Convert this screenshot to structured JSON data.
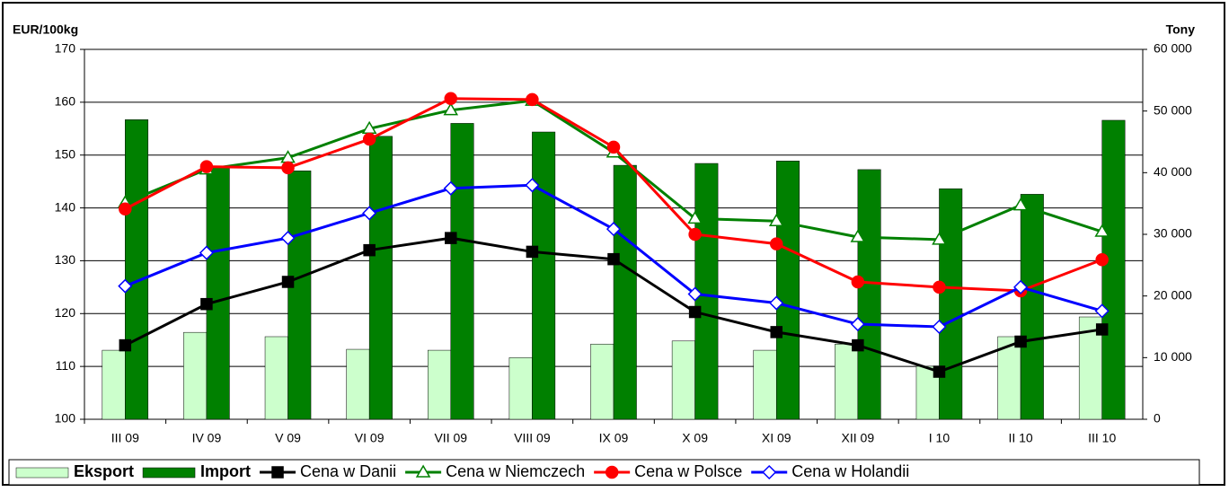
{
  "chart_data": {
    "type": "bar-line",
    "y_label": "EUR/100kg",
    "y2_label": "Tony",
    "categories": [
      "III 09",
      "IV 09",
      "V 09",
      "VI 09",
      "VII 09",
      "VIII 09",
      "IX 09",
      "X 09",
      "XI 09",
      "XII 09",
      "I 10",
      "II 10",
      "III 10"
    ],
    "series": [
      {
        "name": "Eksport",
        "type": "bar",
        "axis": "y2",
        "color": "#ccffcc",
        "values": [
          11200,
          14100,
          13400,
          11350,
          11200,
          10000,
          12200,
          12700,
          11200,
          12200,
          8600,
          13400,
          16600
        ]
      },
      {
        "name": "Import",
        "type": "bar",
        "axis": "y2",
        "color": "#008000",
        "values": [
          48600,
          40800,
          40300,
          45900,
          48000,
          46600,
          41200,
          41500,
          41900,
          40500,
          37400,
          36500,
          48500
        ]
      },
      {
        "name": "Cena w Danii",
        "type": "line",
        "color": "#000000",
        "marker": "square",
        "values": [
          114,
          121.8,
          126,
          132,
          134.3,
          131.7,
          130.3,
          120.3,
          116.5,
          114,
          109,
          114.7,
          117
        ]
      },
      {
        "name": "Cena w Niemczech",
        "type": "line",
        "color": "#008000",
        "marker": "triangle",
        "values": [
          141,
          147.3,
          149.5,
          155,
          158.5,
          160.3,
          150.5,
          138,
          137.5,
          134.5,
          134,
          140.5,
          135.5
        ]
      },
      {
        "name": "Cena w Polsce",
        "type": "line",
        "color": "#ff0000",
        "marker": "circle",
        "values": [
          139.8,
          147.8,
          147.6,
          153,
          160.7,
          160.5,
          151.5,
          135,
          133.2,
          126,
          125,
          124.3,
          130.2
        ]
      },
      {
        "name": "Cena w Holandii",
        "type": "line",
        "color": "#0000ff",
        "marker": "diamond",
        "values": [
          125.2,
          131.5,
          134.3,
          139,
          143.7,
          144.3,
          136,
          123.7,
          122,
          118,
          117.5,
          125,
          120.5
        ]
      }
    ],
    "ylim": [
      100,
      170
    ],
    "yticks": [
      100,
      110,
      120,
      130,
      140,
      150,
      160,
      170
    ],
    "y2lim": [
      0,
      60000
    ],
    "y2ticks": [
      0,
      {
        "value": 10000,
        "label": "10 000"
      },
      {
        "value": 20000,
        "label": "20 000"
      },
      {
        "value": 30000,
        "label": "30 000"
      },
      {
        "value": 40000,
        "label": "40 000"
      },
      {
        "value": 50000,
        "label": "50 000"
      },
      {
        "value": 60000,
        "label": "60 000"
      }
    ],
    "grid": true
  }
}
